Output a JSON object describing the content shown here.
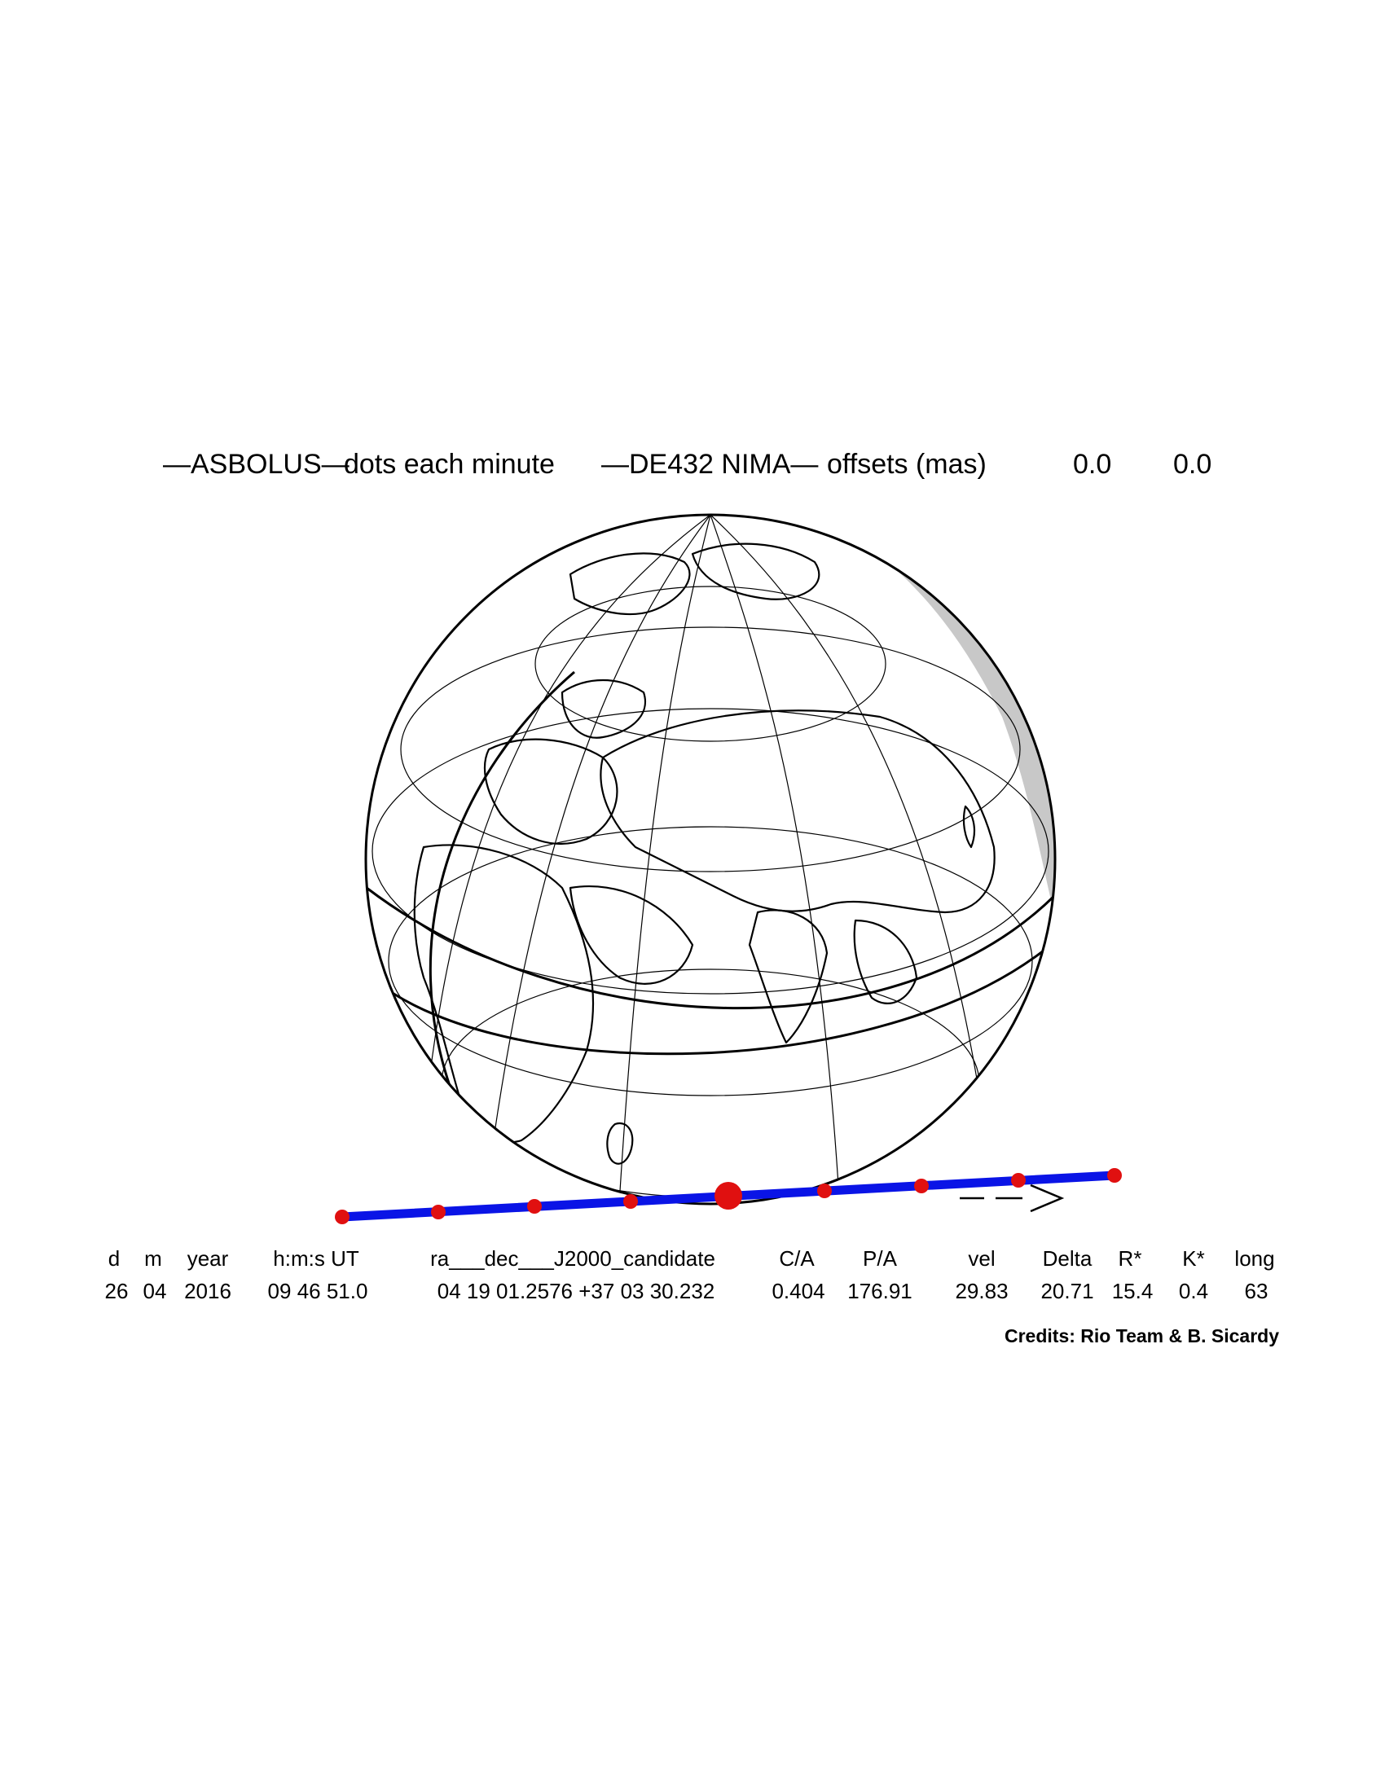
{
  "title": {
    "object": "—ASBOLUS—",
    "note": "dots each minute",
    "ephemeris": "—DE432 NIMA—",
    "offsets_label": "offsets (mas)",
    "offset_ra": "0.0",
    "offset_dec": "0.0"
  },
  "table": {
    "headers": [
      "d",
      "m",
      "year",
      "h:m:s UT",
      "ra___dec___J2000_candidate",
      "C/A",
      "P/A",
      "vel",
      "Delta",
      "R*",
      "K*",
      "long"
    ],
    "values": [
      "26",
      "04",
      "2016",
      "09 46 51.0",
      "04 19 01.2576 +37 03 30.232",
      "0.404",
      "176.91",
      "29.83",
      "20.71",
      "15.4",
      "0.4",
      "63"
    ]
  },
  "credits": "Credits: Rio Team & B. Sicardy",
  "direction_arrow": "— —>",
  "colors": {
    "shadow_track": "#0a14e6",
    "minute_dots": "#e01010",
    "night_side": "#c8c8c8",
    "coastlines": "#000000"
  }
}
